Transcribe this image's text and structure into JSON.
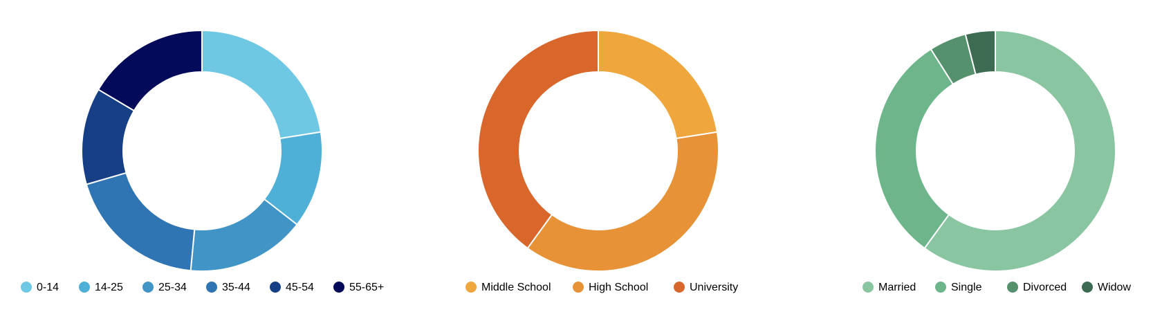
{
  "chart_data": [
    {
      "type": "pie",
      "donut": true,
      "title": "",
      "categories": [
        "0-14",
        "14-25",
        "25-34",
        "35-44",
        "45-54",
        "55-65+"
      ],
      "values": [
        22.5,
        13,
        16,
        19,
        13,
        16.5
      ],
      "colors": [
        "#6fc8e3",
        "#4eb0d6",
        "#4194c6",
        "#2f75b3",
        "#163f86",
        "#020a59"
      ],
      "legend": "bottom"
    },
    {
      "type": "pie",
      "donut": true,
      "title": "",
      "categories": [
        "Middle School",
        "High School",
        "University"
      ],
      "values": [
        22.5,
        37.5,
        40
      ],
      "colors": [
        "#eea63d",
        "#e79237",
        "#d9662b"
      ],
      "legend": "bottom"
    },
    {
      "type": "pie",
      "donut": true,
      "title": "",
      "categories": [
        "Married",
        "Single",
        "Divorced",
        "Widow"
      ],
      "values": [
        60,
        31,
        5,
        4
      ],
      "colors": [
        "#89c5a0",
        "#6db58a",
        "#55916c",
        "#3c6b52"
      ],
      "legend": "bottom"
    }
  ]
}
